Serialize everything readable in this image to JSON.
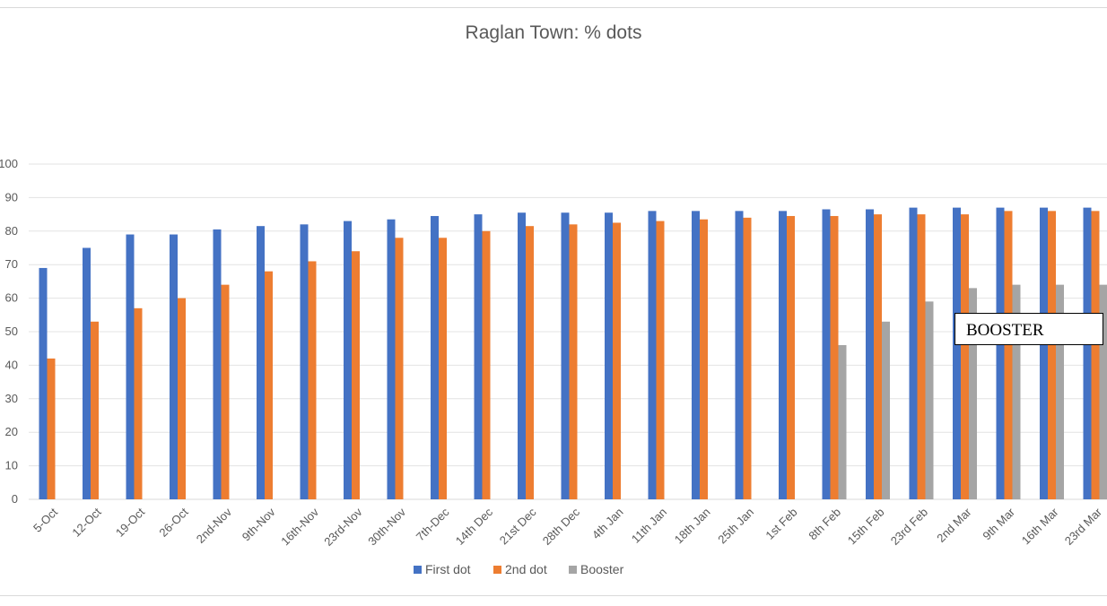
{
  "chart_data": {
    "type": "bar",
    "title": "Raglan Town: % dots",
    "xlabel": "",
    "ylabel": "",
    "ylim": [
      0,
      100
    ],
    "yticks": [
      0,
      10,
      20,
      30,
      40,
      50,
      60,
      70,
      80,
      90,
      100
    ],
    "grid": true,
    "legend_position": "bottom",
    "categories": [
      "5-Oct",
      "12-Oct",
      "19-Oct",
      "26-Oct",
      "2nd-Nov",
      "9th-Nov",
      "16th-Nov",
      "23rd-Nov",
      "30th-Nov",
      "7th-Dec",
      "14th Dec",
      "21st Dec",
      "28th Dec",
      "4th Jan",
      "11th Jan",
      "18th Jan",
      "25th Jan",
      "1st Feb",
      "8th Feb",
      "15th Feb",
      "23rd Feb",
      "2nd Mar",
      "9th Mar",
      "16th Mar",
      "23rd Mar"
    ],
    "series": [
      {
        "name": "First dot",
        "color": "#4472c4",
        "values": [
          69,
          75,
          79,
          79,
          80.5,
          81.5,
          82,
          83,
          83.5,
          84.5,
          85,
          85.5,
          85.5,
          85.5,
          86,
          86,
          86,
          86,
          86.5,
          86.5,
          87,
          87,
          87,
          87,
          87
        ]
      },
      {
        "name": "2nd dot",
        "color": "#ed7d31",
        "values": [
          42,
          53,
          57,
          60,
          64,
          68,
          71,
          74,
          78,
          78,
          80,
          81.5,
          82,
          82.5,
          83,
          83.5,
          84,
          84.5,
          84.5,
          85,
          85,
          85,
          86,
          86,
          86
        ]
      },
      {
        "name": "Booster",
        "color": "#a5a5a5",
        "values": [
          null,
          null,
          null,
          null,
          null,
          null,
          null,
          null,
          null,
          null,
          null,
          null,
          null,
          null,
          null,
          null,
          null,
          null,
          46,
          53,
          59,
          63,
          64,
          64,
          64
        ]
      }
    ],
    "annotation": "BOOSTER"
  }
}
